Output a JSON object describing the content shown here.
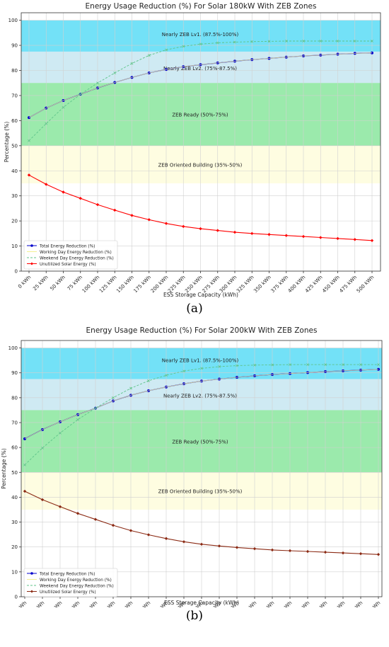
{
  "figures": [
    {
      "caption": "(a)",
      "chart_data": {
        "type": "line",
        "title": "Energy Usage Reduction (%) For Solar 180kW With ZEB Zones",
        "xlabel": "ESS Storage Capacity (kWh)",
        "ylabel": "Percentage (%)",
        "ylim": [
          0,
          103
        ],
        "yticks": [
          0,
          10,
          20,
          30,
          40,
          50,
          60,
          70,
          80,
          90,
          100
        ],
        "grid": true,
        "legend_position": "lower-left",
        "categories": [
          "0 kWh",
          "25 kWh",
          "50 kWh",
          "75 kWh",
          "100 kWh",
          "125 kWh",
          "150 kWh",
          "175 kWh",
          "200 kWh",
          "225 kWh",
          "250 kWh",
          "275 kWh",
          "300 kWh",
          "325 kWh",
          "350 kWh",
          "375 kWh",
          "400 kWh",
          "425 kWh",
          "450 kWh",
          "475 kWh",
          "500 kWh"
        ],
        "zones": [
          {
            "label": "Nearly ZEB Lv1. (87.5%-100%)",
            "from": 87.5,
            "to": 100,
            "color": "#00c8f0"
          },
          {
            "label": "Nearly ZEB Lv2. (75%-87.5%)",
            "from": 75,
            "to": 87.5,
            "color": "#a8d8ea"
          },
          {
            "label": "ZEB Ready (50%-75%)",
            "from": 50,
            "to": 75,
            "color": "#48d868"
          },
          {
            "label": "ZEB Oriented Building (35%-50%)",
            "from": 35,
            "to": 50,
            "color": "#fdfcc8"
          }
        ],
        "series": [
          {
            "name": "Total Energy Reduction (%)",
            "color": "#0000cc",
            "style": "solid",
            "marker": "circle",
            "values": [
              61.2,
              65.0,
              68.0,
              70.5,
              73.0,
              75.2,
              77.2,
              79.0,
              80.4,
              81.5,
              82.3,
              83.0,
              83.7,
              84.3,
              84.8,
              85.3,
              85.8,
              86.1,
              86.5,
              86.8,
              87.0
            ]
          },
          {
            "name": "Working Day Energy Reduction (%)",
            "color": "#f3f092",
            "style": "solid",
            "marker": "none",
            "values": [
              61.2,
              65.0,
              68.0,
              70.5,
              73.0,
              75.2,
              77.2,
              79.0,
              80.4,
              81.5,
              82.3,
              83.0,
              83.7,
              84.3,
              84.8,
              85.3,
              85.8,
              86.1,
              86.5,
              86.8,
              87.0
            ]
          },
          {
            "name": "Weekend Day Energy Reduction (%)",
            "color": "#5fc48a",
            "style": "dashed",
            "marker": "x",
            "values": [
              52.0,
              58.8,
              65.3,
              70.5,
              75.0,
              79.0,
              82.8,
              86.0,
              88.2,
              89.6,
              90.5,
              91.0,
              91.3,
              91.5,
              91.6,
              91.7,
              91.7,
              91.7,
              91.7,
              91.7,
              91.7
            ]
          },
          {
            "name": "Unutilized Solar Energy (%)",
            "color": "#ff0000",
            "style": "solid",
            "marker": "diamond",
            "values": [
              38.3,
              34.6,
              31.5,
              29.0,
              26.5,
              24.3,
              22.2,
              20.5,
              19.0,
              17.8,
              16.9,
              16.2,
              15.5,
              15.0,
              14.6,
              14.2,
              13.8,
              13.4,
              13.0,
              12.6,
              12.2
            ]
          }
        ]
      }
    },
    {
      "caption": "(b)",
      "chart_data": {
        "type": "line",
        "title": "Energy Usage Reduction (%) For Solar 200kW With ZEB Zones",
        "xlabel": "ESS Storage Capacity (kWh)",
        "ylabel": "Percentage (%)",
        "ylim": [
          0,
          103
        ],
        "yticks": [
          0,
          10,
          20,
          30,
          40,
          50,
          60,
          70,
          80,
          90,
          100
        ],
        "grid": true,
        "legend_position": "lower-left",
        "categories": [
          "0 kWh",
          "25 kWh",
          "50 kWh",
          "75 kWh",
          "100 kWh",
          "125 kWh",
          "150 kWh",
          "175 kWh",
          "200 kWh",
          "225 kWh",
          "250 kWh",
          "275 kWh",
          "300 kWh",
          "325 kWh",
          "350 kWh",
          "375 kWh",
          "400 kWh",
          "425 kWh",
          "450 kWh",
          "475 kWh",
          "500 kWh"
        ],
        "zones": [
          {
            "label": "Nearly ZEB Lv1. (87.5%-100%)",
            "from": 87.5,
            "to": 100,
            "color": "#00c8f0"
          },
          {
            "label": "Nearly ZEB Lv2. (75%-87.5%)",
            "from": 75,
            "to": 87.5,
            "color": "#a8d8ea"
          },
          {
            "label": "ZEB Ready (50%-75%)",
            "from": 50,
            "to": 75,
            "color": "#48d868"
          },
          {
            "label": "ZEB Oriented Building (35%-50%)",
            "from": 35,
            "to": 50,
            "color": "#fdfcc8"
          }
        ],
        "series": [
          {
            "name": "Total Energy Reduction (%)",
            "color": "#0000cc",
            "style": "solid",
            "marker": "circle",
            "values": [
              63.5,
              67.2,
              70.3,
              73.2,
              75.8,
              78.7,
              81.0,
              82.8,
              84.3,
              85.6,
              86.7,
              87.5,
              88.2,
              88.8,
              89.3,
              89.7,
              90.1,
              90.5,
              90.8,
              91.1,
              91.4
            ]
          },
          {
            "name": "Working Day Energy Reduction (%)",
            "color": "#f3f092",
            "style": "solid",
            "marker": "none",
            "values": [
              63.5,
              67.2,
              70.3,
              73.2,
              75.8,
              78.7,
              81.0,
              82.8,
              84.3,
              85.6,
              86.7,
              87.5,
              88.2,
              88.8,
              89.3,
              89.7,
              90.1,
              90.5,
              90.8,
              91.1,
              91.4
            ]
          },
          {
            "name": "Weekend Day Energy Reduction (%)",
            "color": "#5fc48a",
            "style": "dashed",
            "marker": "x",
            "values": [
              53.0,
              59.8,
              65.8,
              71.2,
              75.8,
              80.0,
              83.8,
              86.8,
              89.0,
              90.7,
              91.8,
              92.5,
              92.9,
              93.1,
              93.2,
              93.3,
              93.3,
              93.3,
              93.3,
              93.3,
              93.3
            ]
          },
          {
            "name": "Unutilized Solar Energy (%)",
            "color": "#8b2a14",
            "style": "solid",
            "marker": "diamond",
            "values": [
              42.4,
              39.0,
              36.2,
              33.5,
              31.1,
              28.7,
              26.6,
              24.9,
              23.4,
              22.1,
              21.1,
              20.4,
              19.8,
              19.3,
              18.8,
              18.5,
              18.2,
              17.9,
              17.6,
              17.3,
              17.0
            ]
          }
        ]
      }
    }
  ]
}
